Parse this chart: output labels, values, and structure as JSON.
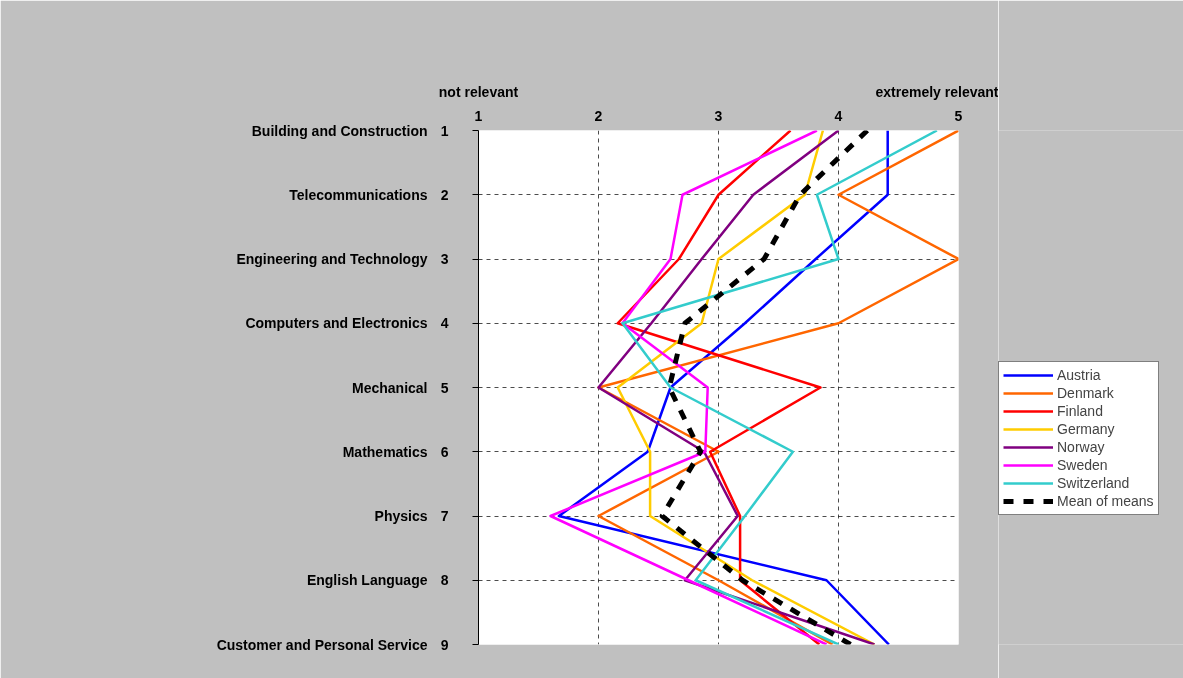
{
  "chart_data": {
    "type": "line",
    "orientation": "horizontal",
    "categories": [
      "Building and Construction",
      "Telecommunications",
      "Engineering and Technology",
      "Computers and Electronics",
      "Mechanical",
      "Mathematics",
      "Physics",
      "English Language",
      "Customer and Personal Service"
    ],
    "xlim": [
      1,
      5
    ],
    "xticks": [
      1,
      2,
      3,
      4,
      5
    ],
    "annotations": [
      "not relevant",
      "extremely relevant",
      "1",
      "2",
      "3",
      "4",
      "5",
      "6",
      "7",
      "8",
      "9"
    ],
    "grid": true,
    "legend": "right",
    "line_style": "solid",
    "series": [
      {
        "name": "Austria",
        "color": "#0000ff",
        "values": [
          4.41,
          4.41,
          3.81,
          3.22,
          2.6,
          2.41,
          1.67,
          3.9,
          4.42
        ]
      },
      {
        "name": "Denmark",
        "color": "#ff6600",
        "values": [
          5.0,
          4.0,
          5.0,
          4.0,
          2.0,
          3.0,
          2.0,
          3.0,
          3.95
        ]
      },
      {
        "name": "Finland",
        "color": "#ff0000",
        "values": [
          3.6,
          3.0,
          2.67,
          2.16,
          3.85,
          2.93,
          3.18,
          3.18,
          3.84
        ]
      },
      {
        "name": "Germany",
        "color": "#ffcc00",
        "values": [
          3.87,
          3.72,
          3.0,
          2.86,
          2.16,
          2.43,
          2.43,
          3.28,
          4.3
        ]
      },
      {
        "name": "Norway",
        "color": "#800080",
        "values": [
          4.0,
          3.29,
          2.86,
          2.44,
          2.0,
          2.88,
          3.16,
          2.72,
          4.3
        ]
      },
      {
        "name": "Sweden",
        "color": "#ff00ff",
        "values": [
          3.82,
          2.7,
          2.6,
          2.2,
          2.91,
          2.89,
          1.6,
          2.75,
          3.9
        ]
      },
      {
        "name": "Switzerland",
        "color": "#33cccc",
        "values": [
          4.82,
          3.82,
          4.0,
          2.2,
          2.6,
          3.62,
          3.22,
          2.81,
          4.0
        ]
      },
      {
        "name": "Mean of means",
        "color": "#000000",
        "line_style": "dashed",
        "values": [
          4.24,
          3.68,
          3.38,
          2.72,
          2.59,
          2.85,
          2.53,
          3.2,
          4.1
        ]
      }
    ]
  }
}
